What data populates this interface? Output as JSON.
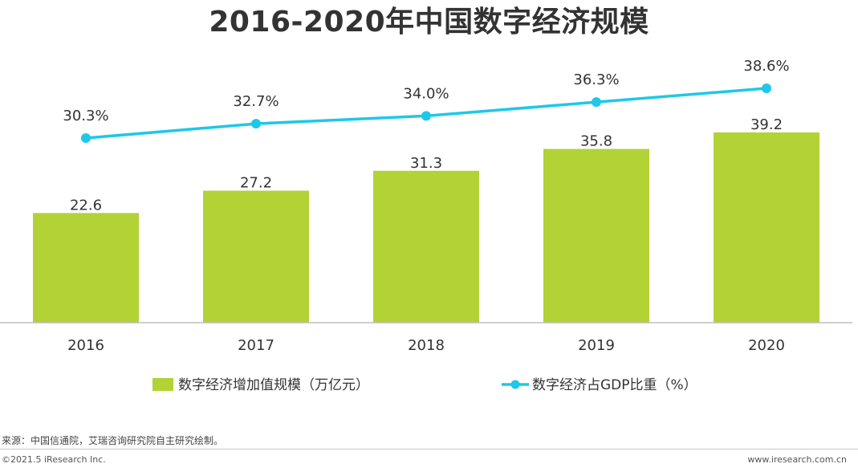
{
  "chart_data": {
    "type": "bar",
    "title": "2016-2020年中国数字经济规模",
    "categories": [
      "2016",
      "2017",
      "2018",
      "2019",
      "2020"
    ],
    "series": [
      {
        "name": "数字经济增加值规模（万亿元）",
        "type": "bar",
        "axis": "left",
        "values": [
          22.6,
          27.2,
          31.3,
          35.8,
          39.2
        ],
        "labels": [
          "22.6",
          "27.2",
          "31.3",
          "35.8",
          "39.2"
        ],
        "color": "#b2d235"
      },
      {
        "name": "数字经济占GDP比重（%）",
        "type": "line",
        "axis": "right",
        "values": [
          30.3,
          32.7,
          34.0,
          36.3,
          38.6
        ],
        "labels": [
          "30.3%",
          "32.7%",
          "34.0%",
          "36.3%",
          "38.6%"
        ],
        "color": "#1ec8e8"
      }
    ],
    "xlabel": "",
    "ylabel": "",
    "ylim": [
      0,
      40
    ],
    "y2lim": [
      0,
      44
    ],
    "grid": false,
    "legend": "bottom"
  },
  "footer": {
    "source": "来源：中国信通院，艾瑞咨询研究院自主研究绘制。",
    "copyright": "©2021.5 iResearch Inc.",
    "website": "www.iresearch.com.cn"
  }
}
